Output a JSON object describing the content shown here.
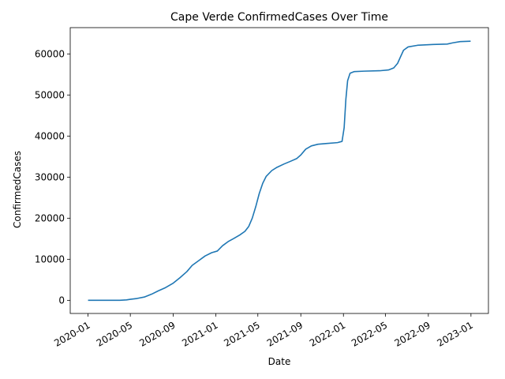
{
  "chart_data": {
    "type": "line",
    "title": "Cape Verde  ConfirmedCases Over Time",
    "xlabel": "Date",
    "ylabel": "ConfirmedCases",
    "x_tick_labels": [
      "2020-01",
      "2020-05",
      "2020-09",
      "2021-01",
      "2021-05",
      "2021-09",
      "2022-01",
      "2022-05",
      "2022-09",
      "2023-01"
    ],
    "x_tick_dates": [
      "2020-01-01",
      "2020-05-01",
      "2020-09-01",
      "2021-01-01",
      "2021-05-01",
      "2021-09-01",
      "2022-01-01",
      "2022-05-01",
      "2022-09-01",
      "2023-01-01"
    ],
    "y_ticks": [
      0,
      10000,
      20000,
      30000,
      40000,
      50000,
      60000
    ],
    "xlim": [
      "2019-11-11",
      "2023-02-20"
    ],
    "ylim": [
      -3200,
      66400
    ],
    "grid": false,
    "legend": "none",
    "colors": {
      "line": "#1f77b4"
    },
    "series": [
      {
        "points": [
          [
            "2020-01-01",
            0
          ],
          [
            "2020-03-01",
            0
          ],
          [
            "2020-04-01",
            10
          ],
          [
            "2020-04-20",
            100
          ],
          [
            "2020-05-01",
            250
          ],
          [
            "2020-05-20",
            450
          ],
          [
            "2020-06-10",
            800
          ],
          [
            "2020-07-01",
            1500
          ],
          [
            "2020-07-20",
            2300
          ],
          [
            "2020-08-10",
            3100
          ],
          [
            "2020-09-01",
            4200
          ],
          [
            "2020-09-20",
            5500
          ],
          [
            "2020-10-10",
            7000
          ],
          [
            "2020-10-25",
            8500
          ],
          [
            "2020-11-15",
            9800
          ],
          [
            "2020-12-01",
            10800
          ],
          [
            "2020-12-20",
            11600
          ],
          [
            "2021-01-05",
            12000
          ],
          [
            "2021-01-20",
            13300
          ],
          [
            "2021-02-05",
            14300
          ],
          [
            "2021-02-20",
            15000
          ],
          [
            "2021-03-10",
            15900
          ],
          [
            "2021-03-25",
            16800
          ],
          [
            "2021-04-05",
            18000
          ],
          [
            "2021-04-15",
            20000
          ],
          [
            "2021-04-25",
            22800
          ],
          [
            "2021-05-05",
            26000
          ],
          [
            "2021-05-15",
            28500
          ],
          [
            "2021-05-25",
            30200
          ],
          [
            "2021-06-10",
            31600
          ],
          [
            "2021-06-25",
            32400
          ],
          [
            "2021-07-15",
            33200
          ],
          [
            "2021-08-01",
            33800
          ],
          [
            "2021-08-20",
            34500
          ],
          [
            "2021-09-01",
            35400
          ],
          [
            "2021-09-15",
            36800
          ],
          [
            "2021-10-01",
            37600
          ],
          [
            "2021-10-20",
            38000
          ],
          [
            "2021-11-15",
            38200
          ],
          [
            "2021-12-15",
            38400
          ],
          [
            "2021-12-28",
            38700
          ],
          [
            "2022-01-03",
            42000
          ],
          [
            "2022-01-08",
            49000
          ],
          [
            "2022-01-13",
            53500
          ],
          [
            "2022-01-20",
            55300
          ],
          [
            "2022-02-01",
            55700
          ],
          [
            "2022-03-01",
            55800
          ],
          [
            "2022-04-15",
            55900
          ],
          [
            "2022-05-10",
            56100
          ],
          [
            "2022-05-25",
            56600
          ],
          [
            "2022-06-05",
            57700
          ],
          [
            "2022-06-15",
            59600
          ],
          [
            "2022-06-22",
            60900
          ],
          [
            "2022-07-05",
            61700
          ],
          [
            "2022-08-01",
            62100
          ],
          [
            "2022-09-15",
            62300
          ],
          [
            "2022-10-25",
            62400
          ],
          [
            "2022-11-10",
            62700
          ],
          [
            "2022-12-01",
            63000
          ],
          [
            "2022-12-31",
            63100
          ]
        ]
      }
    ]
  }
}
